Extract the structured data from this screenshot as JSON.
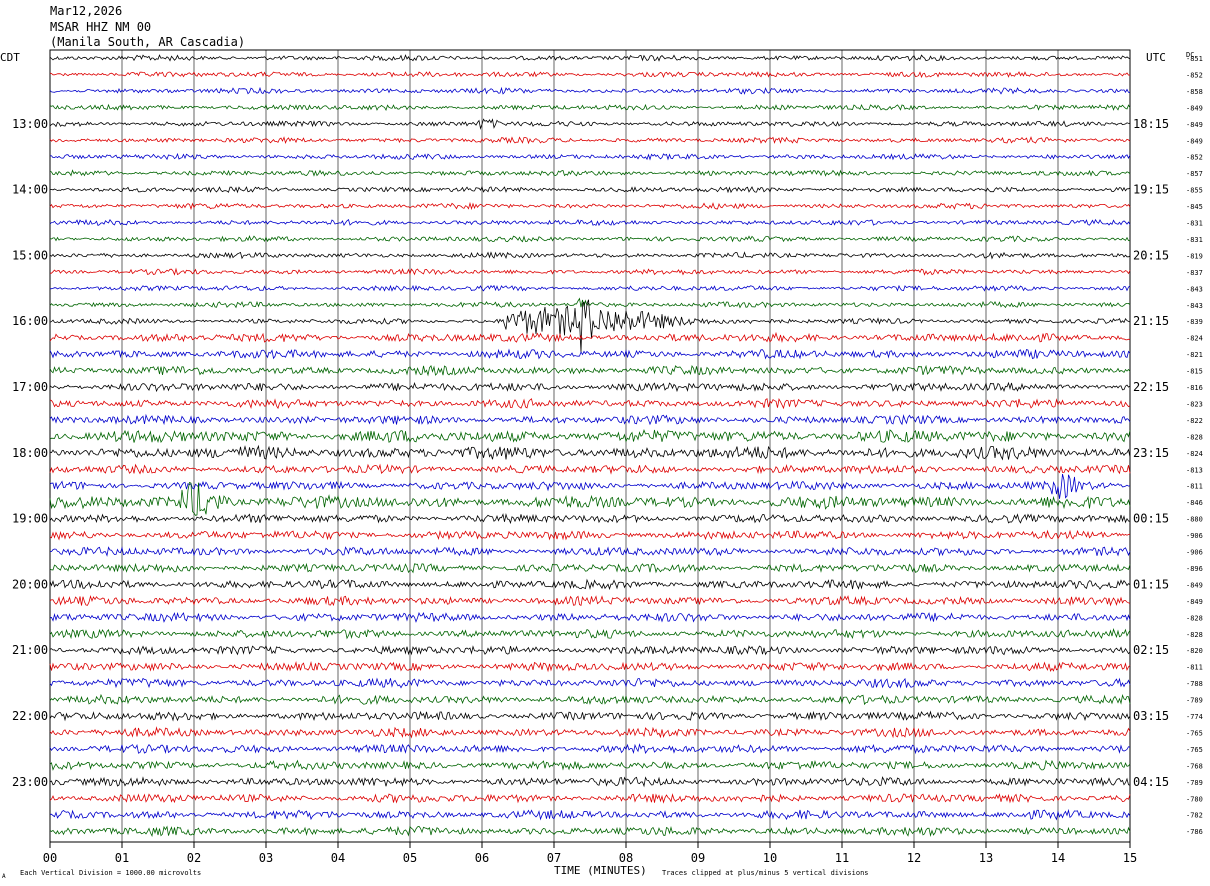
{
  "header": {
    "date": "Mar12,2026",
    "station": "MSAR HHZ NM 00",
    "location": "(Manila South, AR Cascadia)"
  },
  "left_tz": "CDT",
  "right_tz": "UTC",
  "dc_label": "DC",
  "footer": {
    "scale_note": "Each Vertical Division = 1000.00 microvolts",
    "xlabel": "TIME (MINUTES)",
    "clip_note": "Traces clipped at plus/minus 5 vertical divisions",
    "corner_mark": "A"
  },
  "colors": {
    "trace_cycle": [
      "#000000",
      "#dd0000",
      "#0000cc",
      "#006400"
    ],
    "grid": "#000000"
  },
  "chart_data": {
    "type": "line",
    "title": "MSAR HHZ NM 00",
    "xlabel": "TIME (MINUTES)",
    "xlim": [
      0,
      15
    ],
    "x_ticks": [
      "00",
      "01",
      "02",
      "03",
      "04",
      "05",
      "06",
      "07",
      "08",
      "09",
      "10",
      "11",
      "12",
      "13",
      "14",
      "15"
    ],
    "grid": true,
    "left_hour_labels": [
      "13:00",
      "14:00",
      "15:00",
      "16:00",
      "17:00",
      "18:00",
      "19:00",
      "20:00",
      "21:00",
      "22:00",
      "23:00"
    ],
    "right_hour_labels": [
      "18:15",
      "19:15",
      "20:15",
      "21:15",
      "22:15",
      "23:15",
      "00:15",
      "01:15",
      "02:15",
      "03:15",
      "04:15"
    ],
    "hour_label_first_row": 4,
    "dc_offsets": [
      -851,
      -852,
      -858,
      -849,
      -849,
      -849,
      -852,
      -857,
      -855,
      -845,
      -831,
      -831,
      -819,
      -837,
      -843,
      -843,
      -839,
      -824,
      -821,
      -815,
      -816,
      -823,
      -822,
      -828,
      -824,
      -813,
      -811,
      -846,
      -880,
      -906,
      -906,
      -896,
      -849,
      -849,
      -828,
      -828,
      -820,
      -811,
      -788,
      -789,
      -774,
      -765,
      -765,
      -768,
      -789,
      -780,
      -782,
      -786
    ],
    "rows": 48,
    "row_amplitude_level": [
      1,
      1,
      1,
      1,
      1,
      1,
      1,
      1,
      1,
      1,
      1,
      1,
      1,
      1,
      1,
      1,
      1,
      2,
      2,
      2,
      2,
      2,
      2,
      3,
      3,
      2,
      2,
      3,
      2,
      2,
      2,
      2,
      2,
      2,
      2,
      2,
      2,
      2,
      2,
      2,
      2,
      2,
      2,
      2,
      2,
      2,
      2,
      2
    ],
    "events": [
      {
        "row": 4,
        "minute": 5.95,
        "duration": 0.35,
        "level": 1.8
      },
      {
        "row": 15,
        "minute": 7.3,
        "duration": 0.3,
        "level": 2.5
      },
      {
        "row": 16,
        "minute": 6.3,
        "duration": 3.0,
        "level": 6
      },
      {
        "row": 16,
        "minute": 7.3,
        "duration": 0.25,
        "level": 9
      },
      {
        "row": 27,
        "minute": 1.8,
        "duration": 0.7,
        "level": 3
      },
      {
        "row": 26,
        "minute": 13.9,
        "duration": 0.5,
        "level": 2.5
      }
    ]
  }
}
